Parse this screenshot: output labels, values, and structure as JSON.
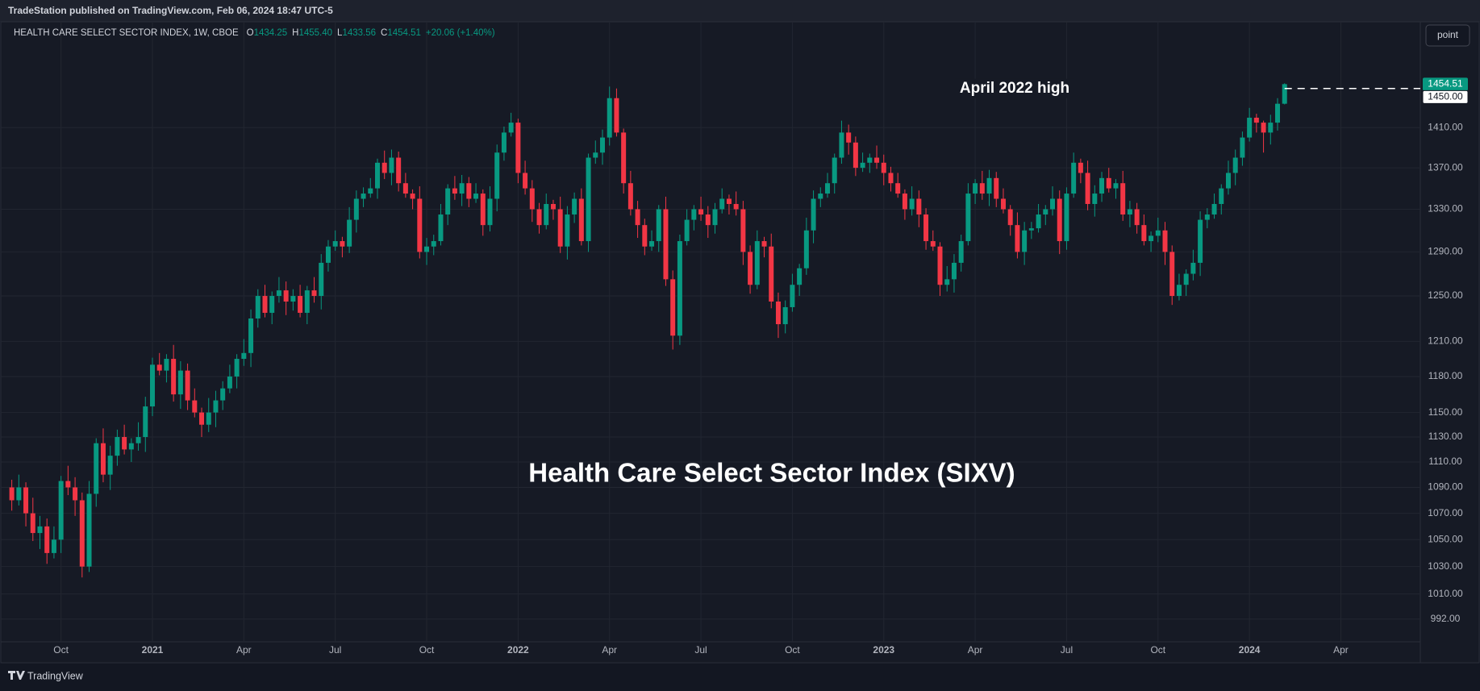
{
  "header": "TradeStation published on TradingView.com, Feb 06, 2024 18:47 UTC-5",
  "footer": "TradingView",
  "button": "point",
  "chart_data": {
    "type": "candlestick",
    "title": "Health Care Select Sector Index (SIXV)",
    "legend": {
      "symbol": "HEALTH CARE SELECT SECTOR INDEX, 1W, CBOE",
      "fields": [
        "O",
        "H",
        "L",
        "C"
      ],
      "values": [
        "1434.25",
        "1455.40",
        "1433.56",
        "1454.51"
      ],
      "change": "+20.06 (+1.40%)"
    },
    "hline": {
      "text": "April 2022 high",
      "value": 1450,
      "label": "1450.00"
    },
    "up_color": "#089981",
    "down_color": "#f23645",
    "log_scale": true,
    "grid": true,
    "ylim": [
      976,
      1520
    ],
    "xlim": [
      -0.3,
      200.3
    ],
    "yticks": [
      {
        "value": 992,
        "label": "992.00"
      },
      {
        "value": 1010,
        "label": "1010.00"
      },
      {
        "value": 1030,
        "label": "1030.00"
      },
      {
        "value": 1050,
        "label": "1050.00"
      },
      {
        "value": 1070,
        "label": "1070.00"
      },
      {
        "value": 1090,
        "label": "1090.00"
      },
      {
        "value": 1110,
        "label": "1110.00"
      },
      {
        "value": 1130,
        "label": "1130.00"
      },
      {
        "value": 1150,
        "label": "1150.00"
      },
      {
        "value": 1180,
        "label": "1180.00"
      },
      {
        "value": 1210,
        "label": "1210.00"
      },
      {
        "value": 1250,
        "label": "1250.00"
      },
      {
        "value": 1290,
        "label": "1290.00"
      },
      {
        "value": 1330,
        "label": "1330.00"
      },
      {
        "value": 1370,
        "label": "1370.00"
      },
      {
        "value": 1410,
        "label": "1410.00"
      }
    ],
    "xticks": [
      {
        "value": 7,
        "label": "Oct"
      },
      {
        "value": 20,
        "label": "2021"
      },
      {
        "value": 33,
        "label": "Apr"
      },
      {
        "value": 46,
        "label": "Jul"
      },
      {
        "value": 59,
        "label": "Oct"
      },
      {
        "value": 72,
        "label": "2022"
      },
      {
        "value": 85,
        "label": "Apr"
      },
      {
        "value": 98,
        "label": "Jul"
      },
      {
        "value": 111,
        "label": "Oct"
      },
      {
        "value": 124,
        "label": "2023"
      },
      {
        "value": 137,
        "label": "Apr"
      },
      {
        "value": 150,
        "label": "Jul"
      },
      {
        "value": 163,
        "label": "Oct"
      },
      {
        "value": 176,
        "label": "2024"
      },
      {
        "value": 189,
        "label": "Apr"
      }
    ],
    "candles": [
      [
        1090,
        1096,
        1072,
        1080
      ],
      [
        1080,
        1100,
        1076,
        1090
      ],
      [
        1090,
        1094,
        1060,
        1070
      ],
      [
        1070,
        1082,
        1049,
        1055
      ],
      [
        1055,
        1068,
        1043,
        1060
      ],
      [
        1060,
        1066,
        1032,
        1040
      ],
      [
        1040,
        1060,
        1036,
        1050
      ],
      [
        1050,
        1099,
        1040,
        1095
      ],
      [
        1095,
        1107,
        1084,
        1090
      ],
      [
        1090,
        1098,
        1068,
        1080
      ],
      [
        1080,
        1086,
        1022,
        1030
      ],
      [
        1030,
        1095,
        1026,
        1085
      ],
      [
        1085,
        1129,
        1075,
        1125
      ],
      [
        1125,
        1137,
        1094,
        1100
      ],
      [
        1100,
        1123,
        1088,
        1115
      ],
      [
        1115,
        1136,
        1107,
        1130
      ],
      [
        1130,
        1140,
        1116,
        1120
      ],
      [
        1120,
        1129,
        1110,
        1125
      ],
      [
        1125,
        1142,
        1119,
        1130
      ],
      [
        1130,
        1163,
        1118,
        1155
      ],
      [
        1155,
        1196,
        1147,
        1190
      ],
      [
        1190,
        1200,
        1181,
        1185
      ],
      [
        1185,
        1199,
        1175,
        1195
      ],
      [
        1195,
        1207,
        1159,
        1165
      ],
      [
        1165,
        1193,
        1153,
        1185
      ],
      [
        1185,
        1191,
        1152,
        1160
      ],
      [
        1160,
        1170,
        1146,
        1150
      ],
      [
        1150,
        1154,
        1130,
        1140
      ],
      [
        1140,
        1162,
        1134,
        1150
      ],
      [
        1150,
        1168,
        1138,
        1160
      ],
      [
        1160,
        1176,
        1152,
        1170
      ],
      [
        1170,
        1190,
        1166,
        1180
      ],
      [
        1180,
        1199,
        1170,
        1195
      ],
      [
        1195,
        1212,
        1189,
        1200
      ],
      [
        1200,
        1238,
        1188,
        1230
      ],
      [
        1230,
        1256,
        1222,
        1250
      ],
      [
        1250,
        1260,
        1231,
        1235
      ],
      [
        1235,
        1254,
        1225,
        1250
      ],
      [
        1250,
        1267,
        1244,
        1255
      ],
      [
        1255,
        1263,
        1233,
        1245
      ],
      [
        1245,
        1256,
        1237,
        1250
      ],
      [
        1250,
        1260,
        1231,
        1235
      ],
      [
        1235,
        1259,
        1225,
        1255
      ],
      [
        1255,
        1267,
        1244,
        1250
      ],
      [
        1250,
        1288,
        1238,
        1280
      ],
      [
        1280,
        1301,
        1272,
        1295
      ],
      [
        1295,
        1310,
        1291,
        1300
      ],
      [
        1300,
        1304,
        1285,
        1295
      ],
      [
        1295,
        1332,
        1289,
        1320
      ],
      [
        1320,
        1348,
        1308,
        1340
      ],
      [
        1340,
        1351,
        1332,
        1345
      ],
      [
        1345,
        1360,
        1341,
        1350
      ],
      [
        1350,
        1379,
        1340,
        1375
      ],
      [
        1375,
        1387,
        1359,
        1365
      ],
      [
        1365,
        1388,
        1353,
        1380
      ],
      [
        1380,
        1386,
        1347,
        1355
      ],
      [
        1355,
        1365,
        1341,
        1345
      ],
      [
        1345,
        1349,
        1330,
        1340
      ],
      [
        1340,
        1352,
        1284,
        1290
      ],
      [
        1290,
        1303,
        1278,
        1295
      ],
      [
        1295,
        1306,
        1287,
        1300
      ],
      [
        1300,
        1335,
        1296,
        1325
      ],
      [
        1325,
        1354,
        1315,
        1350
      ],
      [
        1350,
        1362,
        1339,
        1345
      ],
      [
        1345,
        1363,
        1333,
        1355
      ],
      [
        1355,
        1361,
        1332,
        1340
      ],
      [
        1340,
        1355,
        1336,
        1345
      ],
      [
        1345,
        1349,
        1305,
        1315
      ],
      [
        1315,
        1352,
        1309,
        1340
      ],
      [
        1340,
        1393,
        1328,
        1385
      ],
      [
        1385,
        1411,
        1377,
        1405
      ],
      [
        1405,
        1425,
        1401,
        1415
      ],
      [
        1415,
        1419,
        1355,
        1365
      ],
      [
        1365,
        1377,
        1344,
        1350
      ],
      [
        1350,
        1358,
        1318,
        1330
      ],
      [
        1330,
        1336,
        1307,
        1315
      ],
      [
        1315,
        1345,
        1311,
        1335
      ],
      [
        1335,
        1339,
        1320,
        1330
      ],
      [
        1330,
        1342,
        1289,
        1295
      ],
      [
        1295,
        1333,
        1283,
        1325
      ],
      [
        1325,
        1346,
        1317,
        1340
      ],
      [
        1340,
        1350,
        1296,
        1300
      ],
      [
        1300,
        1384,
        1290,
        1380
      ],
      [
        1380,
        1397,
        1374,
        1385
      ],
      [
        1385,
        1408,
        1373,
        1400
      ],
      [
        1400,
        1452,
        1392,
        1440
      ],
      [
        1440,
        1450,
        1401,
        1405
      ],
      [
        1405,
        1409,
        1345,
        1355
      ],
      [
        1355,
        1367,
        1324,
        1330
      ],
      [
        1330,
        1338,
        1303,
        1315
      ],
      [
        1315,
        1321,
        1287,
        1295
      ],
      [
        1295,
        1310,
        1291,
        1300
      ],
      [
        1300,
        1334,
        1290,
        1330
      ],
      [
        1330,
        1342,
        1259,
        1265
      ],
      [
        1265,
        1273,
        1203,
        1215
      ],
      [
        1215,
        1306,
        1207,
        1300
      ],
      [
        1300,
        1330,
        1296,
        1320
      ],
      [
        1320,
        1334,
        1310,
        1330
      ],
      [
        1330,
        1342,
        1319,
        1325
      ],
      [
        1325,
        1333,
        1303,
        1315
      ],
      [
        1315,
        1336,
        1307,
        1330
      ],
      [
        1330,
        1350,
        1326,
        1340
      ],
      [
        1340,
        1344,
        1325,
        1335
      ],
      [
        1335,
        1347,
        1324,
        1330
      ],
      [
        1330,
        1338,
        1278,
        1290
      ],
      [
        1290,
        1296,
        1252,
        1260
      ],
      [
        1260,
        1310,
        1256,
        1300
      ],
      [
        1300,
        1304,
        1285,
        1295
      ],
      [
        1295,
        1307,
        1239,
        1245
      ],
      [
        1245,
        1253,
        1213,
        1225
      ],
      [
        1225,
        1246,
        1217,
        1240
      ],
      [
        1240,
        1270,
        1236,
        1260
      ],
      [
        1260,
        1279,
        1250,
        1275
      ],
      [
        1275,
        1322,
        1269,
        1310
      ],
      [
        1310,
        1348,
        1298,
        1340
      ],
      [
        1340,
        1351,
        1332,
        1345
      ],
      [
        1345,
        1365,
        1341,
        1355
      ],
      [
        1355,
        1384,
        1345,
        1380
      ],
      [
        1380,
        1417,
        1374,
        1405
      ],
      [
        1405,
        1413,
        1383,
        1395
      ],
      [
        1395,
        1401,
        1362,
        1370
      ],
      [
        1370,
        1385,
        1366,
        1375
      ],
      [
        1375,
        1384,
        1365,
        1380
      ],
      [
        1380,
        1392,
        1369,
        1375
      ],
      [
        1375,
        1383,
        1353,
        1365
      ],
      [
        1365,
        1371,
        1347,
        1355
      ],
      [
        1355,
        1365,
        1341,
        1345
      ],
      [
        1345,
        1349,
        1320,
        1330
      ],
      [
        1330,
        1352,
        1324,
        1340
      ],
      [
        1340,
        1348,
        1313,
        1325
      ],
      [
        1325,
        1331,
        1292,
        1300
      ],
      [
        1300,
        1310,
        1291,
        1295
      ],
      [
        1295,
        1299,
        1250,
        1260
      ],
      [
        1260,
        1277,
        1254,
        1265
      ],
      [
        1265,
        1288,
        1253,
        1280
      ],
      [
        1280,
        1306,
        1272,
        1300
      ],
      [
        1300,
        1355,
        1296,
        1345
      ],
      [
        1345,
        1359,
        1335,
        1355
      ],
      [
        1355,
        1367,
        1339,
        1345
      ],
      [
        1345,
        1368,
        1333,
        1360
      ],
      [
        1360,
        1366,
        1332,
        1340
      ],
      [
        1340,
        1350,
        1326,
        1330
      ],
      [
        1330,
        1334,
        1305,
        1315
      ],
      [
        1315,
        1327,
        1284,
        1290
      ],
      [
        1290,
        1318,
        1278,
        1310
      ],
      [
        1310,
        1318,
        1302,
        1312
      ],
      [
        1312,
        1335,
        1308,
        1325
      ],
      [
        1325,
        1334,
        1315,
        1330
      ],
      [
        1330,
        1352,
        1324,
        1340
      ],
      [
        1340,
        1348,
        1288,
        1300
      ],
      [
        1300,
        1351,
        1292,
        1345
      ],
      [
        1345,
        1385,
        1341,
        1375
      ],
      [
        1375,
        1379,
        1355,
        1365
      ],
      [
        1365,
        1377,
        1329,
        1335
      ],
      [
        1335,
        1353,
        1323,
        1345
      ],
      [
        1345,
        1366,
        1337,
        1360
      ],
      [
        1360,
        1370,
        1346,
        1350
      ],
      [
        1350,
        1359,
        1340,
        1355
      ],
      [
        1355,
        1367,
        1319,
        1325
      ],
      [
        1325,
        1338,
        1313,
        1330
      ],
      [
        1330,
        1336,
        1307,
        1315
      ],
      [
        1315,
        1325,
        1296,
        1300
      ],
      [
        1300,
        1309,
        1290,
        1305
      ],
      [
        1305,
        1322,
        1299,
        1310
      ],
      [
        1310,
        1318,
        1278,
        1290
      ],
      [
        1290,
        1296,
        1242,
        1250
      ],
      [
        1250,
        1270,
        1246,
        1260
      ],
      [
        1260,
        1274,
        1250,
        1270
      ],
      [
        1270,
        1292,
        1264,
        1280
      ],
      [
        1280,
        1328,
        1268,
        1320
      ],
      [
        1320,
        1331,
        1312,
        1325
      ],
      [
        1325,
        1345,
        1321,
        1335
      ],
      [
        1335,
        1354,
        1325,
        1350
      ],
      [
        1350,
        1377,
        1344,
        1365
      ],
      [
        1365,
        1388,
        1353,
        1380
      ],
      [
        1380,
        1406,
        1372,
        1400
      ],
      [
        1400,
        1430,
        1396,
        1420
      ],
      [
        1420,
        1424,
        1405,
        1415
      ],
      [
        1415,
        1417,
        1385,
        1405
      ],
      [
        1405,
        1423,
        1393,
        1415
      ],
      [
        1415,
        1440,
        1407,
        1434.25
      ],
      [
        1434.25,
        1455.4,
        1433.56,
        1454.51
      ]
    ]
  }
}
